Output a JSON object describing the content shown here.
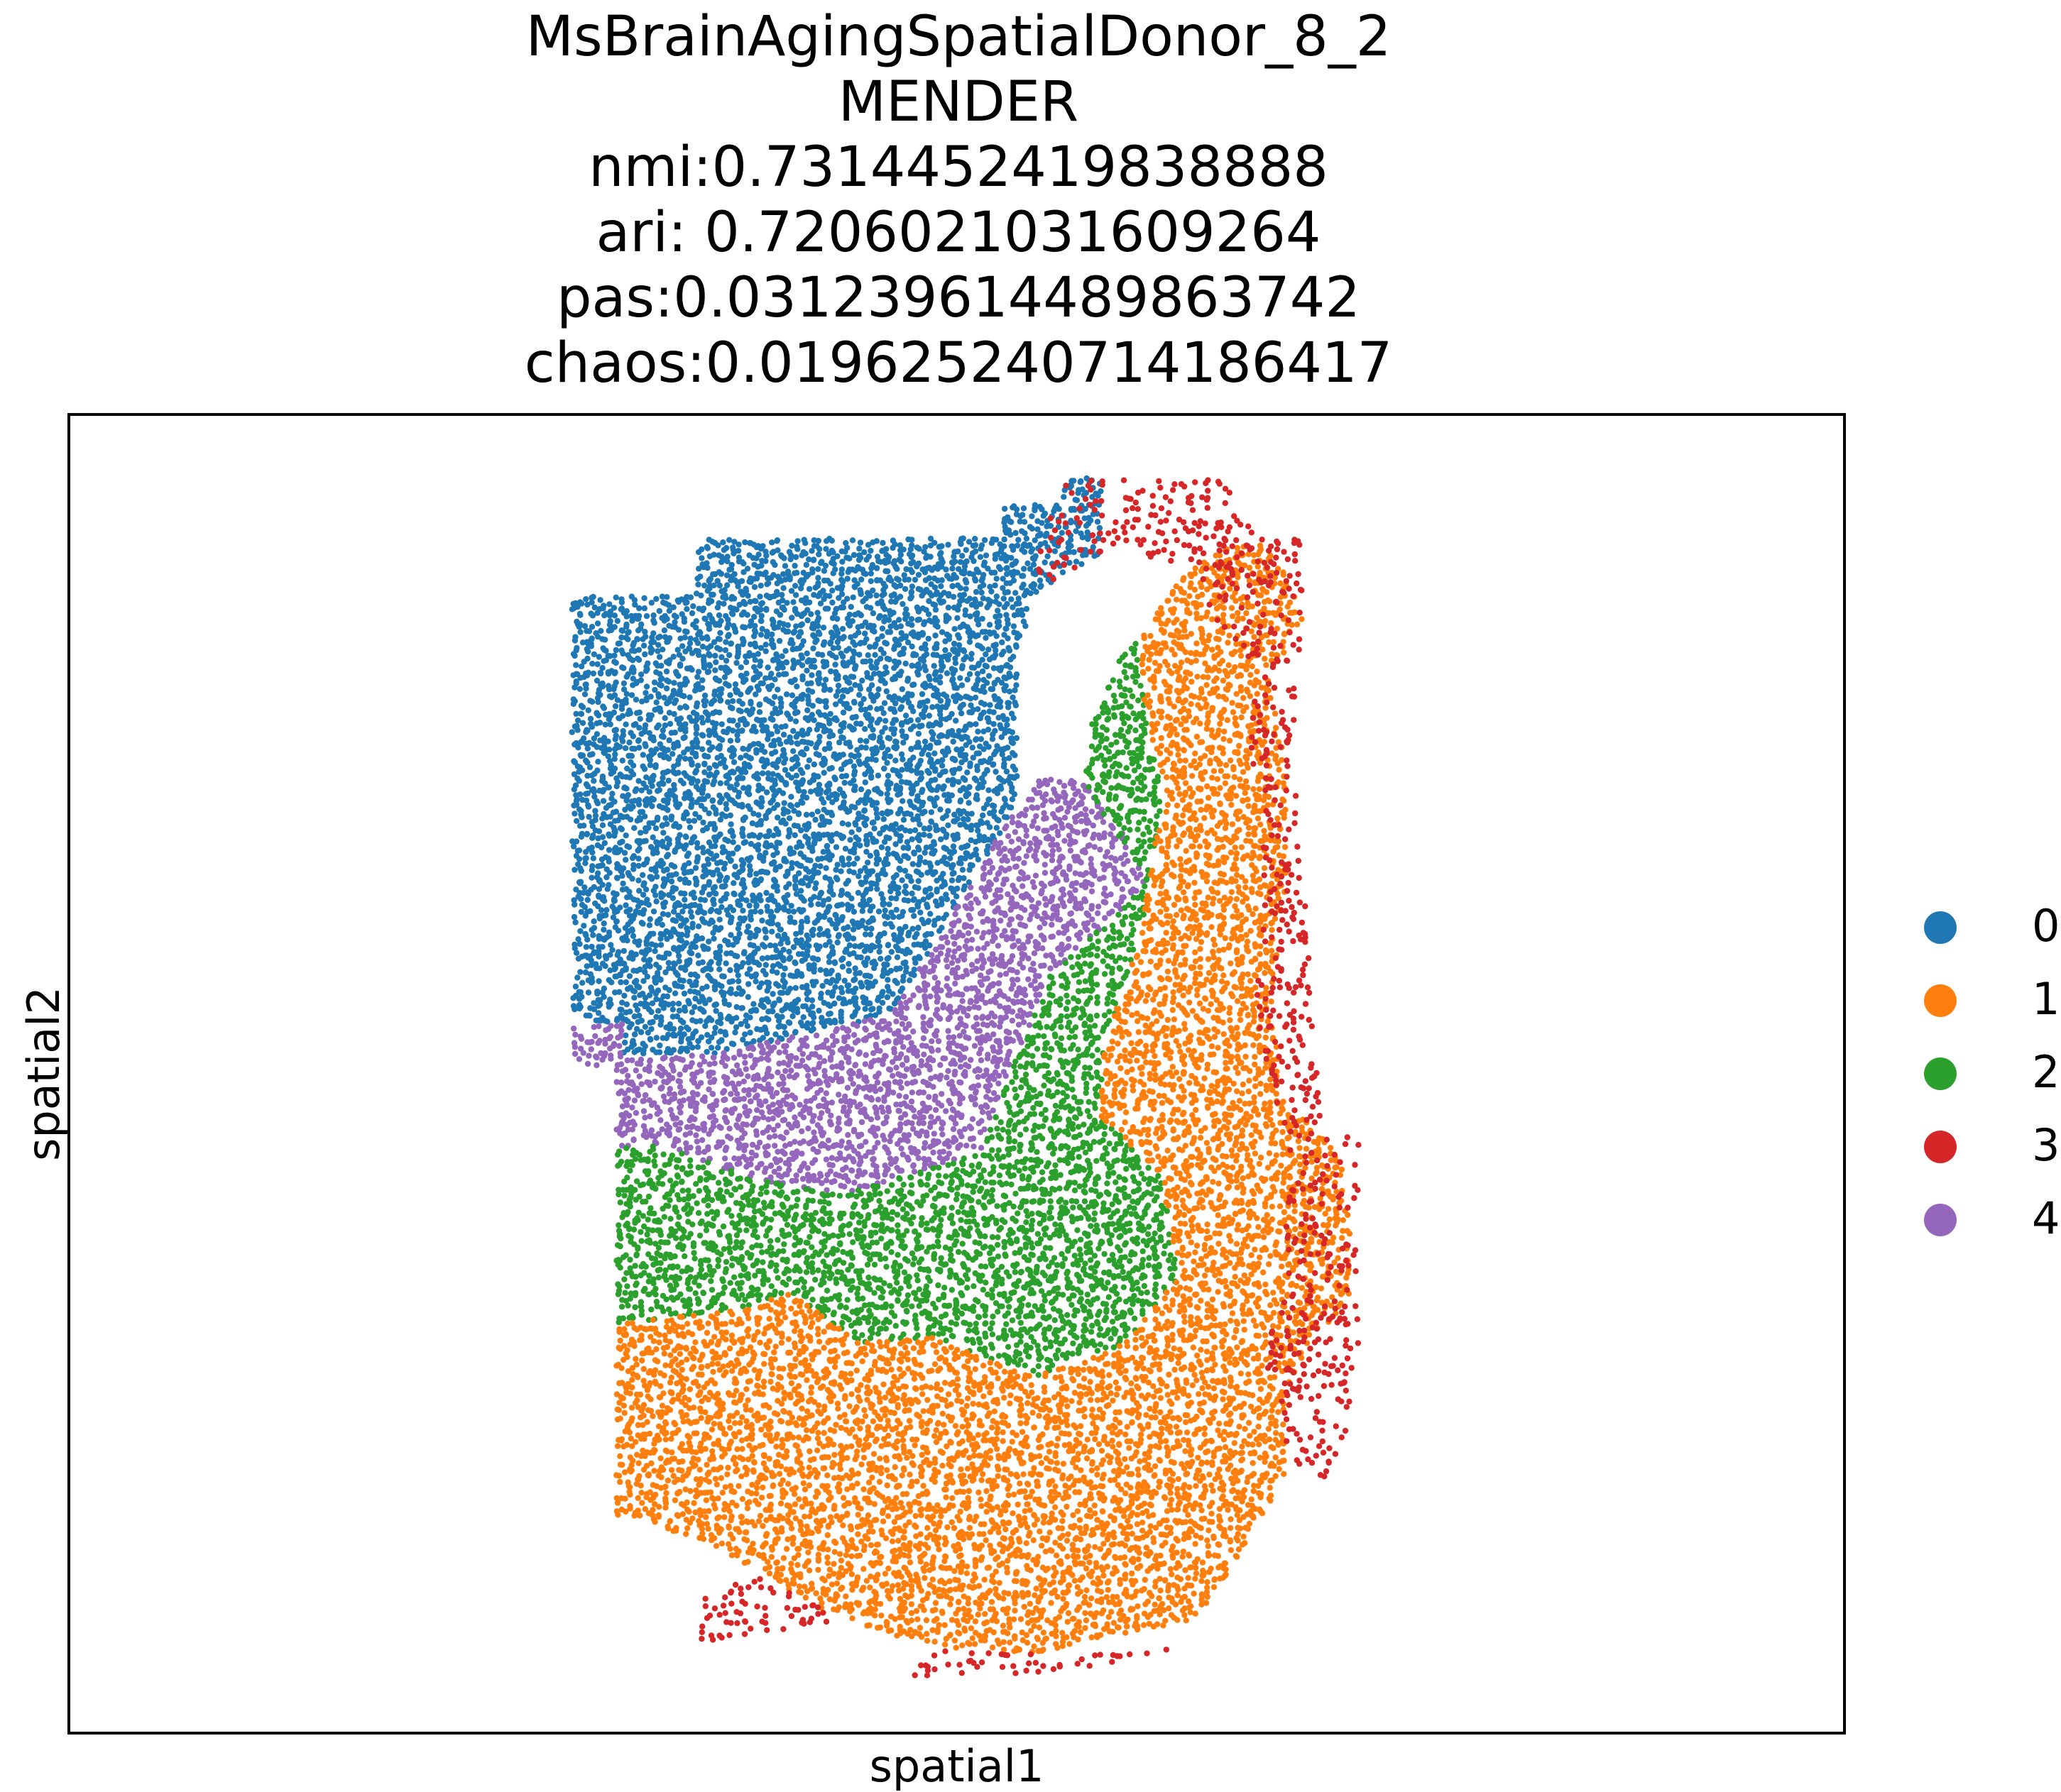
{
  "title_lines": [
    "MsBrainAgingSpatialDonor_8_2",
    "MENDER",
    "nmi:0.7314452419838888",
    "ari: 0.7206021031609264",
    "pas:0.031239614489863742",
    "chaos:0.019625240714186417"
  ],
  "chart_data": {
    "type": "scatter",
    "xlabel": "spatial1",
    "ylabel": "spatial2",
    "xlim": [
      0,
      100
    ],
    "ylim": [
      0,
      100
    ],
    "ticks": "none",
    "grid": false,
    "legend": {
      "placement": "right",
      "entries": [
        "0",
        "1",
        "2",
        "3",
        "4"
      ]
    },
    "colors": {
      "0": "#1f77b4",
      "1": "#ff7f0e",
      "2": "#2ca02c",
      "3": "#d62728",
      "4": "#9467bd"
    },
    "series": [
      {
        "name": "0",
        "regions": [
          [
            [
              28.3,
              86.3
            ],
            [
              35.3,
              86.3
            ],
            [
              35.3,
              90.7
            ],
            [
              52.5,
              90.7
            ],
            [
              52.5,
              93.3
            ],
            [
              56.0,
              93.3
            ],
            [
              56.0,
              95.3
            ],
            [
              58.3,
              95.3
            ],
            [
              58.0,
              89.5
            ],
            [
              54.4,
              86.5
            ],
            [
              53.4,
              81.0
            ],
            [
              53.4,
              70.5
            ],
            [
              50.8,
              64.5
            ],
            [
              46.3,
              54.5
            ],
            [
              36.5,
              51.5
            ],
            [
              31.2,
              51.3
            ],
            [
              31.2,
              53.8
            ],
            [
              28.3,
              53.8
            ]
          ]
        ],
        "density": 0.9
      },
      {
        "name": "4",
        "regions": [
          [
            [
              28.3,
              53.8
            ],
            [
              31.2,
              53.8
            ],
            [
              31.2,
              51.3
            ],
            [
              36.5,
              51.5
            ],
            [
              46.3,
              54.5
            ],
            [
              50.8,
              64.5
            ],
            [
              53.4,
              70.5
            ],
            [
              55.0,
              73.0
            ],
            [
              57.2,
              72.0
            ],
            [
              59.3,
              68.5
            ],
            [
              60.8,
              64.5
            ],
            [
              55.2,
              57.3
            ],
            [
              53.0,
              50.0
            ],
            [
              51.3,
              44.0
            ],
            [
              43.5,
              40.8
            ],
            [
              38.5,
              42.0
            ],
            [
              33.5,
              44.5
            ],
            [
              30.8,
              44.5
            ],
            [
              30.8,
              50.5
            ],
            [
              28.3,
              50.8
            ]
          ]
        ],
        "density": 0.85
      },
      {
        "name": "2",
        "regions": [
          [
            [
              30.8,
              44.5
            ],
            [
              33.5,
              44.5
            ],
            [
              38.5,
              42.0
            ],
            [
              43.5,
              40.8
            ],
            [
              51.3,
              44.0
            ],
            [
              53.0,
              50.0
            ],
            [
              55.2,
              57.3
            ],
            [
              60.8,
              64.5
            ],
            [
              57.2,
              72.0
            ],
            [
              57.6,
              76.5
            ],
            [
              59.2,
              81.5
            ],
            [
              60.3,
              83.0
            ],
            [
              60.6,
              77.5
            ],
            [
              61.8,
              71.0
            ],
            [
              61.2,
              67.5
            ],
            [
              60.3,
              60.0
            ],
            [
              58.4,
              52.5
            ],
            [
              58.0,
              47.0
            ],
            [
              61.6,
              42.0
            ],
            [
              62.5,
              34.5
            ],
            [
              59.5,
              29.5
            ],
            [
              54.4,
              27.0
            ],
            [
              48.5,
              30.0
            ],
            [
              44.5,
              29.5
            ],
            [
              40.5,
              33.5
            ],
            [
              37.5,
              32.0
            ],
            [
              30.8,
              31.0
            ]
          ]
        ],
        "density": 0.85
      },
      {
        "name": "1",
        "regions": [
          [
            [
              30.8,
              31.0
            ],
            [
              37.5,
              32.0
            ],
            [
              40.5,
              33.5
            ],
            [
              44.5,
              29.5
            ],
            [
              48.5,
              30.0
            ],
            [
              54.4,
              27.0
            ],
            [
              59.5,
              29.5
            ],
            [
              62.5,
              34.5
            ],
            [
              61.6,
              42.0
            ],
            [
              58.0,
              47.0
            ],
            [
              58.4,
              52.5
            ],
            [
              60.3,
              60.0
            ],
            [
              61.2,
              67.5
            ],
            [
              61.8,
              71.0
            ],
            [
              60.6,
              77.5
            ],
            [
              60.3,
              83.0
            ],
            [
              62.5,
              87.5
            ],
            [
              65.0,
              90.0
            ],
            [
              67.5,
              90.5
            ],
            [
              68.8,
              87.3
            ],
            [
              69.5,
              84.5
            ],
            [
              67.6,
              80.0
            ],
            [
              68.6,
              73.0
            ],
            [
              68.6,
              65.0
            ],
            [
              67.8,
              56.0
            ],
            [
              68.5,
              48.0
            ],
            [
              70.5,
              45.5
            ],
            [
              71.8,
              43.5
            ],
            [
              72.2,
              38.5
            ],
            [
              72.2,
              33.0
            ],
            [
              69.2,
              28.0
            ],
            [
              68.5,
              24.5
            ],
            [
              68.5,
              19.5
            ],
            [
              66.5,
              14.5
            ],
            [
              63.5,
              8.5
            ],
            [
              54.5,
              6.0
            ],
            [
              48.5,
              6.5
            ],
            [
              43.5,
              8.5
            ],
            [
              39.0,
              12.0
            ],
            [
              35.8,
              14.5
            ],
            [
              30.8,
              16.5
            ]
          ]
        ],
        "density": 0.8
      },
      {
        "name": "3",
        "regions": [
          [
            [
              56.0,
              95.3
            ],
            [
              58.3,
              95.3
            ],
            [
              65.5,
              95.3
            ],
            [
              65.5,
              92.8
            ],
            [
              67.5,
              90.5
            ],
            [
              69.5,
              90.8
            ],
            [
              69.5,
              88.0
            ],
            [
              69.5,
              84.5
            ],
            [
              69.0,
              76.0
            ],
            [
              69.5,
              66.0
            ],
            [
              70.0,
              58.0
            ],
            [
              70.5,
              50.0
            ],
            [
              70.8,
              45.5
            ],
            [
              72.8,
              45.5
            ],
            [
              72.5,
              38.0
            ],
            [
              72.7,
              28.0
            ],
            [
              72.2,
              24.5
            ],
            [
              71.5,
              20.0
            ],
            [
              70.0,
              18.5
            ],
            [
              69.0,
              20.0
            ],
            [
              68.0,
              24.5
            ],
            [
              68.6,
              27.0
            ],
            [
              66.5,
              27.5
            ],
            [
              68.6,
              33.0
            ],
            [
              68.6,
              44.0
            ],
            [
              66.8,
              55.0
            ],
            [
              67.3,
              67.0
            ],
            [
              66.5,
              75.0
            ],
            [
              67.0,
              81.0
            ],
            [
              64.5,
              84.0
            ],
            [
              63.5,
              88.5
            ],
            [
              58.5,
              90.0
            ],
            [
              54.4,
              86.5
            ],
            [
              54.5,
              91.0
            ],
            [
              56.0,
              93.3
            ]
          ],
          [
            [
              35.5,
              6.5
            ],
            [
              43.5,
              8.5
            ],
            [
              39.0,
              12.0
            ],
            [
              35.8,
              10.5
            ]
          ],
          [
            [
              47.5,
              4.2
            ],
            [
              56.0,
              4.5
            ],
            [
              63.5,
              6.5
            ],
            [
              56.5,
              5.8
            ],
            [
              48.5,
              6.2
            ]
          ]
        ],
        "density": 0.35
      }
    ]
  }
}
